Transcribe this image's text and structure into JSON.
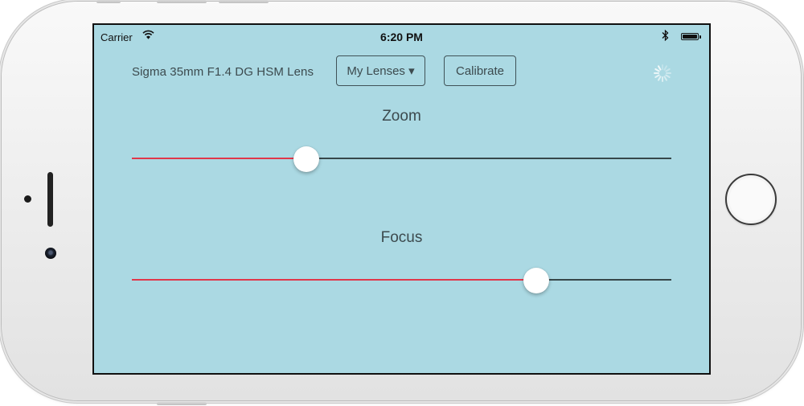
{
  "status_bar": {
    "carrier": "Carrier",
    "time": "6:20 PM",
    "wifi_icon": "wifi-icon",
    "bluetooth_icon": "bluetooth-icon",
    "battery_icon": "battery-icon"
  },
  "toolbar": {
    "lens_name": "Sigma 35mm F1.4 DG HSM Lens",
    "lenses_button": "My Lenses ▾",
    "calibrate_button": "Calibrate",
    "activity_icon": "spinner-icon"
  },
  "sliders": [
    {
      "label": "Zoom",
      "value": 0.323
    },
    {
      "label": "Focus",
      "value": 0.75
    }
  ],
  "colors": {
    "background": "#abd9e3",
    "slider_fill": "#e0384b",
    "slider_track": "#37474a",
    "text": "#3c4a4e"
  }
}
